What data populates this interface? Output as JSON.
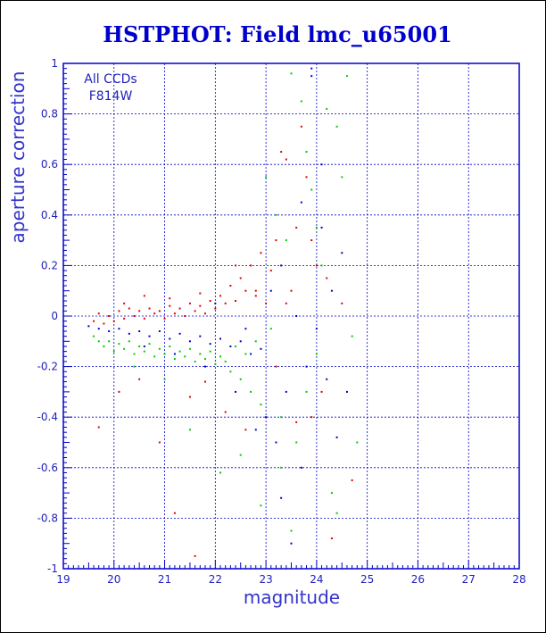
{
  "chart_data": {
    "type": "scatter",
    "title": "HSTPHOT: Field lmc_u65001",
    "xlabel": "magnitude",
    "ylabel": "aperture correction",
    "xlim": [
      19,
      28
    ],
    "ylim": [
      -1,
      1
    ],
    "x_ticks": [
      "19",
      "20",
      "21",
      "22",
      "23",
      "24",
      "25",
      "26",
      "27",
      "28"
    ],
    "y_ticks": [
      "-1",
      "-0.8",
      "-0.6",
      "-0.4",
      "-0.2",
      "0",
      "0.2",
      "0.4",
      "0.6",
      "0.8",
      "1"
    ],
    "grid": true,
    "annotations": [
      "All CCDs",
      "F814W"
    ],
    "series": [
      {
        "color": "#dd0000",
        "points": [
          [
            19.6,
            -0.02
          ],
          [
            19.7,
            0.01
          ],
          [
            19.8,
            -0.03
          ],
          [
            19.9,
            0.0
          ],
          [
            20.0,
            -0.02
          ],
          [
            20.1,
            0.02
          ],
          [
            20.2,
            -0.01
          ],
          [
            20.3,
            0.03
          ],
          [
            20.4,
            0.0
          ],
          [
            20.5,
            0.02
          ],
          [
            20.6,
            -0.01
          ],
          [
            20.7,
            0.03
          ],
          [
            20.8,
            0.01
          ],
          [
            20.9,
            0.02
          ],
          [
            21.0,
            -0.01
          ],
          [
            21.1,
            0.04
          ],
          [
            21.2,
            0.01
          ],
          [
            21.3,
            0.03
          ],
          [
            21.4,
            0.0
          ],
          [
            21.5,
            0.05
          ],
          [
            21.6,
            0.02
          ],
          [
            21.7,
            0.04
          ],
          [
            21.8,
            0.01
          ],
          [
            21.9,
            0.06
          ],
          [
            22.0,
            0.03
          ],
          [
            22.1,
            0.08
          ],
          [
            22.2,
            0.05
          ],
          [
            22.3,
            0.12
          ],
          [
            22.4,
            0.06
          ],
          [
            22.5,
            0.15
          ],
          [
            22.6,
            0.1
          ],
          [
            22.7,
            0.2
          ],
          [
            22.8,
            0.08
          ],
          [
            22.9,
            0.25
          ],
          [
            23.0,
            0.05
          ],
          [
            23.1,
            0.18
          ],
          [
            23.2,
            0.3
          ],
          [
            23.3,
            0.65
          ],
          [
            23.4,
            0.62
          ],
          [
            23.5,
            0.1
          ],
          [
            23.6,
            0.35
          ],
          [
            23.7,
            0.75
          ],
          [
            23.8,
            0.55
          ],
          [
            23.9,
            -0.4
          ],
          [
            24.0,
            0.2
          ],
          [
            24.1,
            -0.3
          ],
          [
            24.2,
            0.15
          ],
          [
            24.3,
            -0.88
          ],
          [
            24.5,
            0.05
          ],
          [
            24.7,
            -0.65
          ],
          [
            20.1,
            -0.3
          ],
          [
            20.5,
            -0.25
          ],
          [
            20.9,
            -0.5
          ],
          [
            21.2,
            -0.78
          ],
          [
            21.5,
            -0.32
          ],
          [
            21.8,
            -0.26
          ],
          [
            22.2,
            -0.38
          ],
          [
            22.6,
            -0.45
          ],
          [
            23.2,
            -0.2
          ],
          [
            23.6,
            -0.42
          ],
          [
            19.7,
            -0.44
          ],
          [
            21.6,
            -0.95
          ],
          [
            20.2,
            0.05
          ],
          [
            20.6,
            0.08
          ],
          [
            21.1,
            0.07
          ],
          [
            21.7,
            0.09
          ],
          [
            22.4,
            0.2
          ],
          [
            22.8,
            0.1
          ],
          [
            23.4,
            0.05
          ],
          [
            23.9,
            0.3
          ]
        ]
      },
      {
        "color": "#00cc00",
        "points": [
          [
            19.6,
            -0.08
          ],
          [
            19.7,
            -0.1
          ],
          [
            19.8,
            -0.12
          ],
          [
            19.9,
            -0.1
          ],
          [
            20.0,
            -0.14
          ],
          [
            20.1,
            -0.11
          ],
          [
            20.2,
            -0.13
          ],
          [
            20.3,
            -0.1
          ],
          [
            20.4,
            -0.15
          ],
          [
            20.5,
            -0.12
          ],
          [
            20.6,
            -0.14
          ],
          [
            20.7,
            -0.11
          ],
          [
            20.8,
            -0.16
          ],
          [
            20.9,
            -0.13
          ],
          [
            21.0,
            -0.15
          ],
          [
            21.1,
            -0.12
          ],
          [
            21.2,
            -0.17
          ],
          [
            21.3,
            -0.14
          ],
          [
            21.4,
            -0.16
          ],
          [
            21.5,
            -0.13
          ],
          [
            21.6,
            -0.18
          ],
          [
            21.7,
            -0.15
          ],
          [
            21.8,
            -0.17
          ],
          [
            21.9,
            -0.14
          ],
          [
            22.0,
            -0.19
          ],
          [
            22.1,
            -0.16
          ],
          [
            22.2,
            -0.18
          ],
          [
            22.3,
            -0.22
          ],
          [
            22.4,
            -0.12
          ],
          [
            22.5,
            -0.25
          ],
          [
            22.6,
            -0.15
          ],
          [
            22.7,
            -0.3
          ],
          [
            22.8,
            -0.1
          ],
          [
            22.9,
            -0.35
          ],
          [
            23.0,
            0.55
          ],
          [
            23.1,
            -0.05
          ],
          [
            23.2,
            0.4
          ],
          [
            23.3,
            -0.4
          ],
          [
            23.4,
            0.3
          ],
          [
            23.5,
            0.96
          ],
          [
            23.6,
            -0.5
          ],
          [
            23.7,
            0.85
          ],
          [
            23.8,
            0.65
          ],
          [
            23.9,
            0.5
          ],
          [
            24.0,
            0.35
          ],
          [
            24.1,
            0.2
          ],
          [
            24.2,
            0.82
          ],
          [
            24.3,
            -0.7
          ],
          [
            24.4,
            0.75
          ],
          [
            24.5,
            0.55
          ],
          [
            24.6,
            0.95
          ],
          [
            24.7,
            -0.08
          ],
          [
            24.8,
            -0.5
          ],
          [
            23.5,
            -0.85
          ],
          [
            23.3,
            -0.6
          ],
          [
            22.9,
            -0.75
          ],
          [
            22.5,
            -0.55
          ],
          [
            21.5,
            -0.45
          ],
          [
            21.0,
            -0.25
          ],
          [
            20.4,
            -0.2
          ],
          [
            22.1,
            -0.62
          ],
          [
            23.8,
            -0.3
          ],
          [
            24.0,
            -0.15
          ],
          [
            24.4,
            -0.78
          ]
        ]
      },
      {
        "color": "#0000cc",
        "points": [
          [
            19.5,
            -0.04
          ],
          [
            19.7,
            -0.05
          ],
          [
            19.9,
            -0.06
          ],
          [
            20.1,
            -0.05
          ],
          [
            20.3,
            -0.07
          ],
          [
            20.5,
            -0.06
          ],
          [
            20.7,
            -0.08
          ],
          [
            20.9,
            -0.06
          ],
          [
            21.1,
            -0.09
          ],
          [
            21.3,
            -0.07
          ],
          [
            21.5,
            -0.1
          ],
          [
            21.7,
            -0.08
          ],
          [
            21.9,
            -0.11
          ],
          [
            22.1,
            -0.09
          ],
          [
            22.3,
            -0.12
          ],
          [
            22.5,
            -0.1
          ],
          [
            22.7,
            -0.15
          ],
          [
            22.9,
            -0.13
          ],
          [
            23.0,
            -0.4
          ],
          [
            23.1,
            0.1
          ],
          [
            23.2,
            -0.5
          ],
          [
            23.3,
            0.2
          ],
          [
            23.4,
            -0.3
          ],
          [
            23.5,
            -0.9
          ],
          [
            23.6,
            0.0
          ],
          [
            23.7,
            -0.6
          ],
          [
            23.8,
            -0.2
          ],
          [
            23.9,
            0.98
          ],
          [
            24.0,
            -0.05
          ],
          [
            24.1,
            0.35
          ],
          [
            24.2,
            -0.25
          ],
          [
            24.3,
            0.1
          ],
          [
            24.4,
            -0.48
          ],
          [
            24.5,
            0.25
          ],
          [
            23.9,
            0.95
          ],
          [
            22.8,
            -0.45
          ],
          [
            22.4,
            -0.3
          ],
          [
            21.8,
            -0.2
          ],
          [
            21.2,
            -0.15
          ],
          [
            20.6,
            -0.12
          ],
          [
            22.0,
            0.05
          ],
          [
            22.6,
            -0.05
          ],
          [
            23.3,
            -0.72
          ],
          [
            23.7,
            0.45
          ],
          [
            24.1,
            0.6
          ],
          [
            24.6,
            -0.3
          ]
        ]
      }
    ]
  }
}
